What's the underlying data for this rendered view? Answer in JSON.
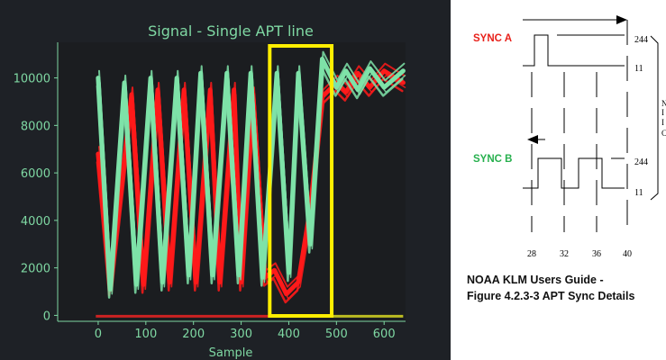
{
  "chart_data": {
    "type": "line",
    "title": "Signal - Single APT line",
    "xlabel": "Sample",
    "ylabel": "",
    "xlim": [
      -85,
      645
    ],
    "ylim": [
      -250,
      11500
    ],
    "xticks": [
      0,
      100,
      200,
      300,
      400,
      500,
      600
    ],
    "yticks": [
      0,
      2000,
      4000,
      6000,
      8000,
      10000
    ],
    "grid": false,
    "legend": "none",
    "colors": {
      "background": "#1e2126",
      "axes": "#1b1d20",
      "text": "#7fd8a3",
      "sync_a": "#ff1a1a",
      "sync_b": "#7ee2a8",
      "highlight": "#ffee00",
      "bar_red": "#cc2222",
      "bar_yellow": "#bbbb22"
    },
    "highlight_window": {
      "x_start": 360,
      "x_end": 490
    },
    "bottom_bar": {
      "red": [
        -5,
        450
      ],
      "yellow": [
        450,
        640
      ]
    },
    "series": [
      {
        "color": "#ff1a1a",
        "x": [
          0,
          25,
          70,
          95,
          125,
          150,
          180,
          205,
          235,
          255,
          285,
          300,
          325,
          350,
          370,
          395,
          420,
          445,
          470,
          500,
          520,
          545,
          570,
          600,
          640
        ],
        "y": [
          6800,
          1200,
          9300,
          1300,
          9500,
          1400,
          9500,
          1400,
          9500,
          1400,
          9500,
          1400,
          9300,
          1600,
          1900,
          900,
          1400,
          4500,
          9200,
          9800,
          9400,
          10200,
          9600,
          10300,
          9800
        ]
      },
      {
        "color": "#7ee2a8",
        "x": [
          0,
          25,
          55,
          80,
          110,
          135,
          165,
          190,
          215,
          240,
          270,
          295,
          320,
          345,
          375,
          400,
          420,
          445,
          470,
          500,
          520,
          545,
          570,
          600,
          640
        ],
        "y": [
          10000,
          1100,
          9800,
          1300,
          10000,
          1400,
          10000,
          1700,
          10200,
          1700,
          10200,
          1700,
          10200,
          1600,
          10200,
          1800,
          10200,
          3000,
          10800,
          9600,
          10300,
          9500,
          10400,
          9600,
          10300
        ]
      }
    ]
  },
  "diagram": {
    "sync_a_label": "SYNC A",
    "sync_b_label": "SYNC B",
    "level_high": "244",
    "level_low": "11",
    "x_ticks": [
      "28",
      "32",
      "36",
      "40"
    ],
    "side_letters": [
      "N",
      "I",
      "I",
      "C"
    ],
    "caption_line1": "NOAA KLM Users Guide -",
    "caption_line2": "Figure 4.2.3-3 APT Sync Details"
  }
}
